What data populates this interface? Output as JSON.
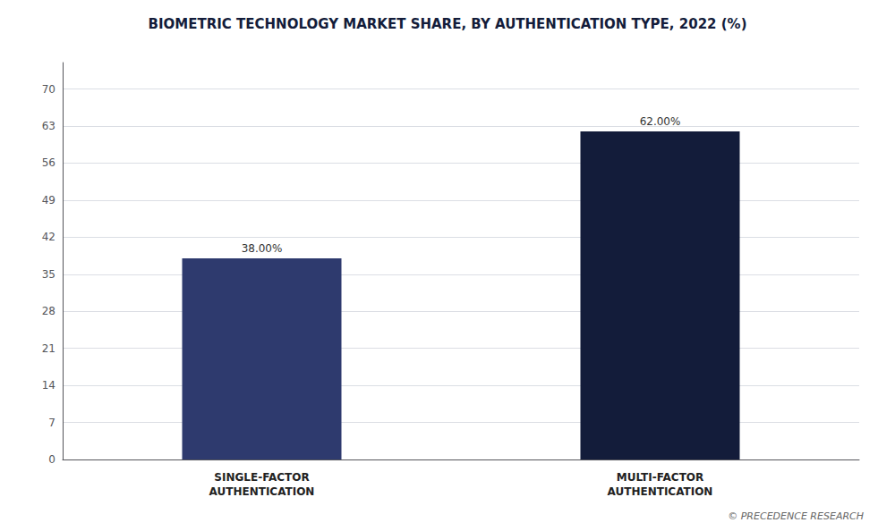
{
  "chart_data": {
    "type": "bar",
    "title": "BIOMETRIC TECHNOLOGY MARKET SHARE, BY AUTHENTICATION TYPE, 2022 (%)",
    "categories": [
      "SINGLE-FACTOR\nAUTHENTICATION",
      "MULTI-FACTOR\nAUTHENTICATION"
    ],
    "values": [
      38.0,
      62.0
    ],
    "value_labels": [
      "38.00%",
      "62.00%"
    ],
    "data_labels": true,
    "colors": [
      "#2e3a6e",
      "#131c3a"
    ],
    "ylim": [
      0,
      75
    ],
    "yticks": [
      0,
      7,
      14,
      21,
      28,
      35,
      42,
      49,
      56,
      63,
      70
    ],
    "grid": true,
    "annotations": [
      "© PRECEDENCE RESEARCH"
    ]
  }
}
